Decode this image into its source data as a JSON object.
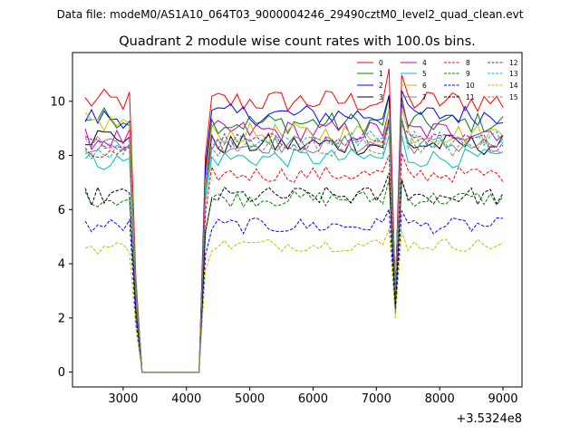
{
  "suptitle": "Data file: modeM0/AS1A10_064T03_9000004246_29490cztM0_level2_quad_clean.evt",
  "chart_data": {
    "type": "line",
    "title": "Quadrant 2 module wise count rates with 100.0s bins.",
    "xlabel": "",
    "ylabel": "",
    "x_offset_label": "+3.5324e8",
    "xlim": [
      2200,
      9300
    ],
    "ylim": [
      -0.55,
      11.8
    ],
    "xticks": [
      3000,
      4000,
      5000,
      6000,
      7000,
      8000,
      9000
    ],
    "xtick_labels": [
      "3000",
      "4000",
      "5000",
      "6000",
      "7000",
      "8000",
      "9000"
    ],
    "yticks": [
      0,
      2,
      4,
      6,
      8,
      10
    ],
    "ytick_labels": [
      "0",
      "2",
      "4",
      "6",
      "8",
      "10"
    ],
    "grid": false,
    "legend_position": "top-right",
    "x_start": 2400,
    "x_step": 100,
    "n_points": 67,
    "gap_start": 3300,
    "gap_end": 4200,
    "dip_x": 7300,
    "series": [
      {
        "name": "0",
        "color": "#ff0000",
        "dash": "solid",
        "base": 10.0,
        "pre": 10.0,
        "dip": 3.0,
        "amp": 0.45
      },
      {
        "name": "1",
        "color": "#008000",
        "dash": "solid",
        "base": 9.2,
        "pre": 9.4,
        "dip": 3.0,
        "amp": 0.4
      },
      {
        "name": "2",
        "color": "#0000ff",
        "dash": "solid",
        "base": 9.5,
        "pre": 9.4,
        "dip": 3.0,
        "amp": 0.4
      },
      {
        "name": "3",
        "color": "#000000",
        "dash": "solid",
        "base": 8.4,
        "pre": 8.7,
        "dip": 3.0,
        "amp": 0.4
      },
      {
        "name": "4",
        "color": "#bf00bf",
        "dash": "solid",
        "base": 8.9,
        "pre": 8.6,
        "dip": 3.0,
        "amp": 0.4
      },
      {
        "name": "5",
        "color": "#00bfbf",
        "dash": "solid",
        "base": 7.9,
        "pre": 7.8,
        "dip": 2.8,
        "amp": 0.35
      },
      {
        "name": "6",
        "color": "#bfbf00",
        "dash": "solid",
        "base": 8.8,
        "pre": 9.2,
        "dip": 3.0,
        "amp": 0.4
      },
      {
        "name": "7",
        "color": "#808080",
        "dash": "solid",
        "base": 8.4,
        "pre": 8.4,
        "dip": 3.0,
        "amp": 0.35
      },
      {
        "name": "8",
        "color": "#ff0000",
        "dash": "dashed",
        "base": 7.3,
        "pre": 8.0,
        "dip": 2.6,
        "amp": 0.3
      },
      {
        "name": "9",
        "color": "#008000",
        "dash": "dashed",
        "base": 6.4,
        "pre": 6.4,
        "dip": 2.4,
        "amp": 0.3
      },
      {
        "name": "10",
        "color": "#0000ff",
        "dash": "dashed",
        "base": 5.4,
        "pre": 5.4,
        "dip": 2.2,
        "amp": 0.3
      },
      {
        "name": "11",
        "color": "#000000",
        "dash": "dashed",
        "base": 6.5,
        "pre": 6.5,
        "dip": 2.3,
        "amp": 0.35
      },
      {
        "name": "12",
        "color": "#bf00bf",
        "dash": "dashed",
        "base": 8.5,
        "pre": 8.4,
        "dip": 3.0,
        "amp": 0.35
      },
      {
        "name": "13",
        "color": "#00bfbf",
        "dash": "dashed",
        "base": 8.6,
        "pre": 8.2,
        "dip": 3.0,
        "amp": 0.35
      },
      {
        "name": "14",
        "color": "#bfbf00",
        "dash": "dashed",
        "base": 4.7,
        "pre": 4.6,
        "dip": 2.0,
        "amp": 0.25
      },
      {
        "name": "15",
        "color": "#808080",
        "dash": "dashed",
        "base": 8.3,
        "pre": 8.4,
        "dip": 3.0,
        "amp": 0.35
      }
    ]
  }
}
